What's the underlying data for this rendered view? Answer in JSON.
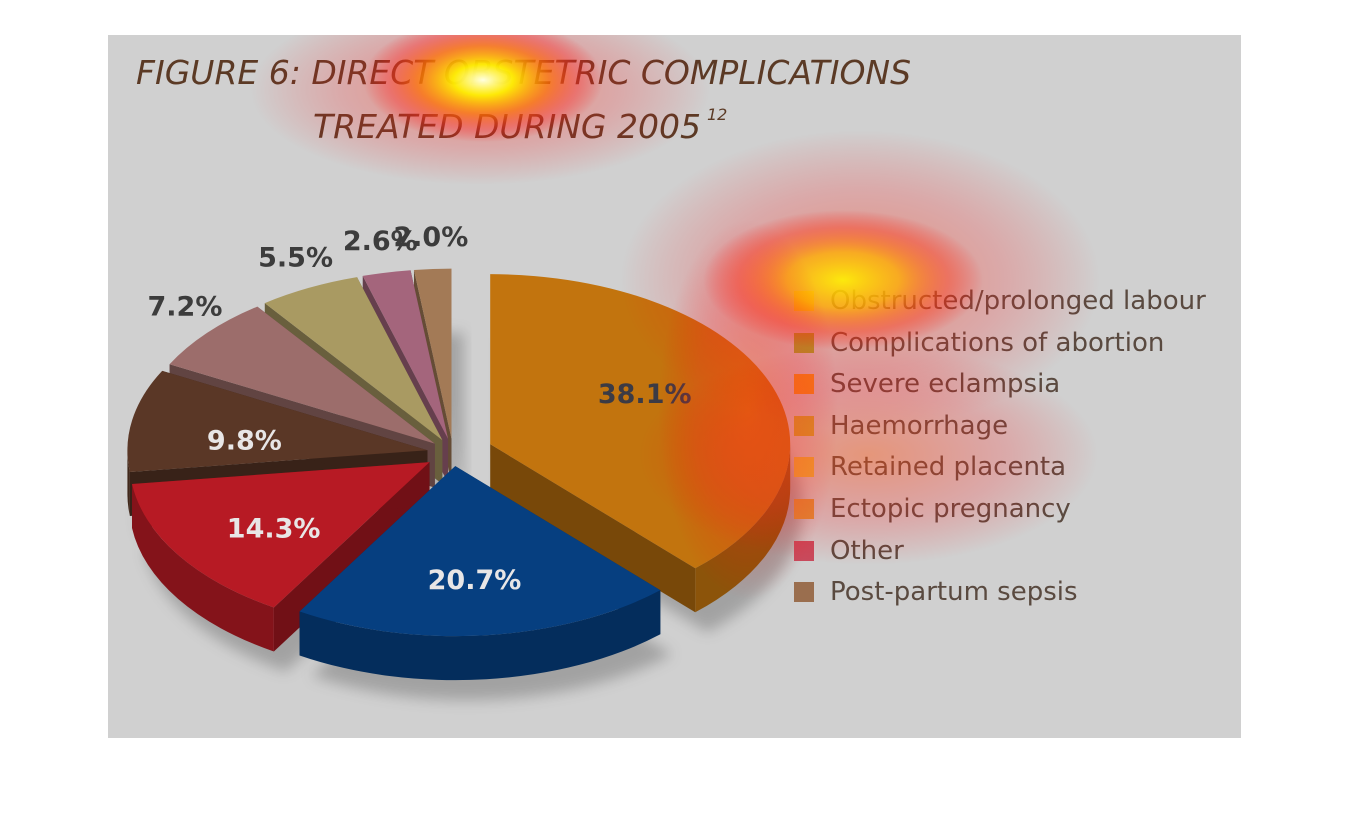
{
  "figure": {
    "title_line1": "FIGURE 6: DIRECT OBSTETRIC COMPLICATIONS",
    "title_line2": "TREATED DURING 2005",
    "title_sup": "12"
  },
  "chart_data": {
    "type": "pie",
    "title": "FIGURE 6: DIRECT OBSTETRIC COMPLICATIONS TREATED DURING 2005",
    "categories": [
      "Obstructed/prolonged labour",
      "Complications of abortion",
      "Severe eclampsia",
      "Haemorrhage",
      "Retained placenta",
      "Ectopic pregnancy",
      "Other",
      "Post-partum sepsis"
    ],
    "values": [
      38.1,
      20.7,
      14.3,
      9.8,
      7.2,
      5.5,
      2.6,
      2.0
    ],
    "labels": [
      "38.1%",
      "20.7%",
      "14.3%",
      "9.8%",
      "7.2%",
      "5.5%",
      "2.6%",
      "2.0%"
    ],
    "colors": [
      "#c2740e",
      "#063f80",
      "#b71a24",
      "#5a3726",
      "#9c6d6b",
      "#a99a62",
      "#a4657c",
      "#a37a56"
    ],
    "legend_colors": [
      "#f0e020",
      "#9ab02a",
      "#f0a018",
      "#c8b42c",
      "#e6c43a",
      "#d99a36",
      "#c84a5c",
      "#9a6e4e"
    ],
    "legend": "right",
    "exploded": true,
    "three_d": true
  }
}
